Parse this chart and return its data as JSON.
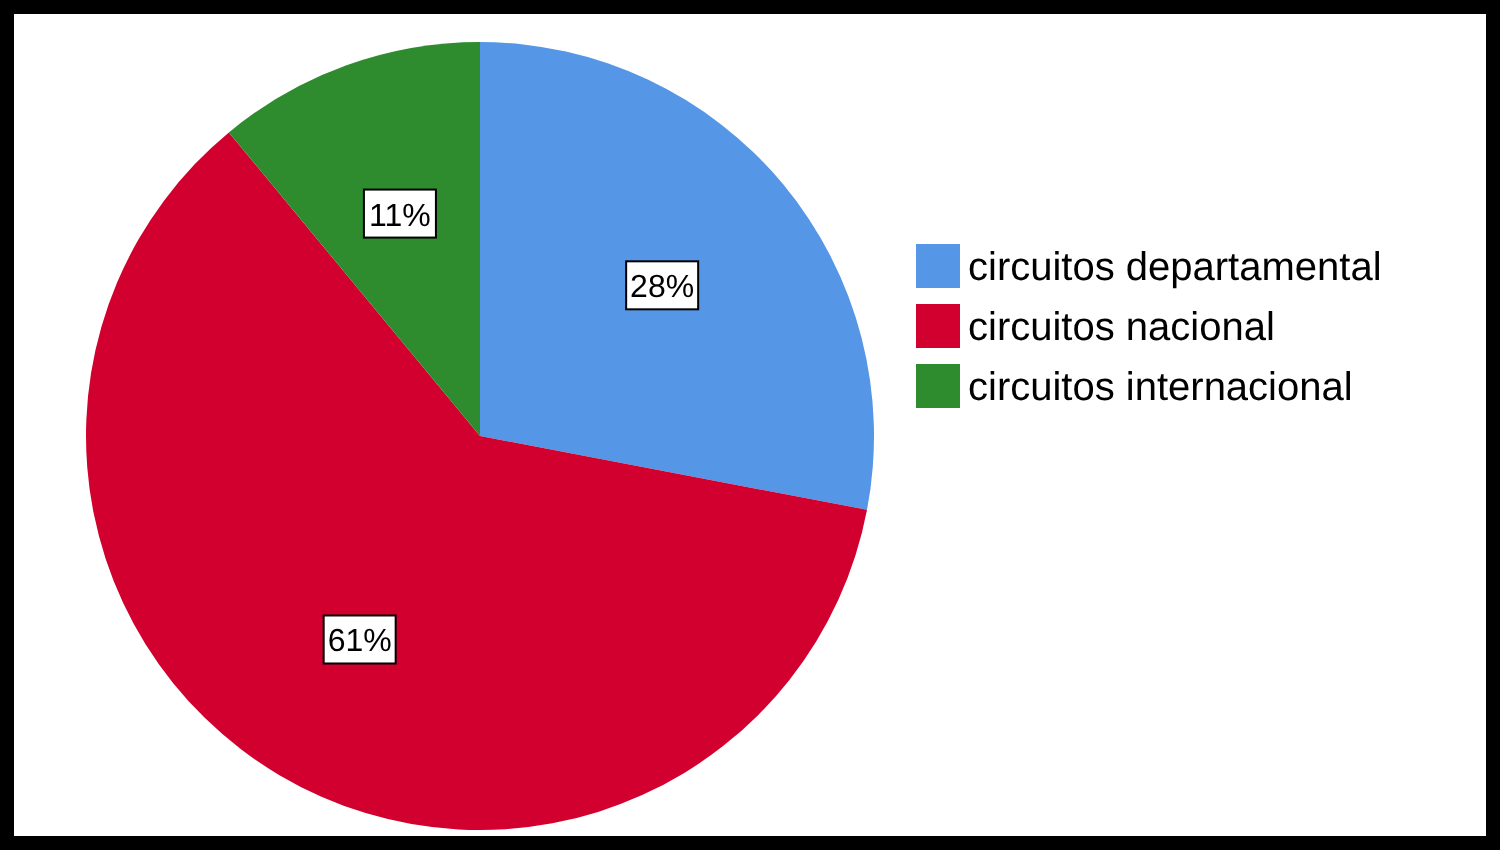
{
  "chart_data": {
    "type": "pie",
    "categories": [
      "circuitos departamental",
      "circuitos nacional",
      "circuitos internacional"
    ],
    "values": [
      28,
      61,
      11
    ],
    "colors": [
      "#5596e6",
      "#d1002f",
      "#2e8b2e"
    ],
    "value_labels": [
      "28%",
      "61%",
      "11%"
    ],
    "legend": "right"
  }
}
